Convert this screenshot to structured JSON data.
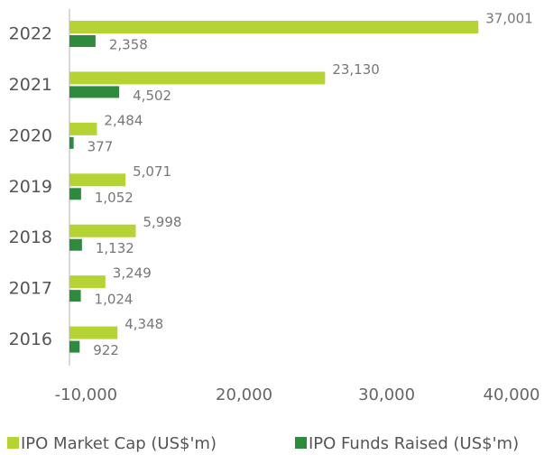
{
  "chart_data": {
    "type": "hbar",
    "categories": [
      "2022",
      "2021",
      "2020",
      "2019",
      "2018",
      "2017",
      "2016"
    ],
    "series": [
      {
        "name": "IPO Market Cap (US$'m)",
        "color": "#b5d334",
        "values": [
          37001,
          23130,
          2484,
          5071,
          5998,
          3249,
          4348
        ],
        "value_labels": [
          "37,001",
          "23,130",
          "2,484",
          "5,071",
          "5,998",
          "3,249",
          "4,348"
        ]
      },
      {
        "name": "IPO Funds Raised (US$'m)",
        "color": "#2e8b3e",
        "values": [
          2358,
          4502,
          377,
          1052,
          1132,
          1024,
          922
        ],
        "value_labels": [
          "2,358",
          "4,502",
          "377",
          "1,052",
          "1,132",
          "1,024",
          "922"
        ]
      }
    ],
    "xlim": [
      0,
      40000
    ],
    "xticks": [
      {
        "value": 1500,
        "label": "-10,000"
      },
      {
        "value": 15800,
        "label": "20,000"
      },
      {
        "value": 28700,
        "label": "30,000"
      },
      {
        "value": 40000,
        "label": "40,000"
      }
    ],
    "legend": "bottom"
  }
}
